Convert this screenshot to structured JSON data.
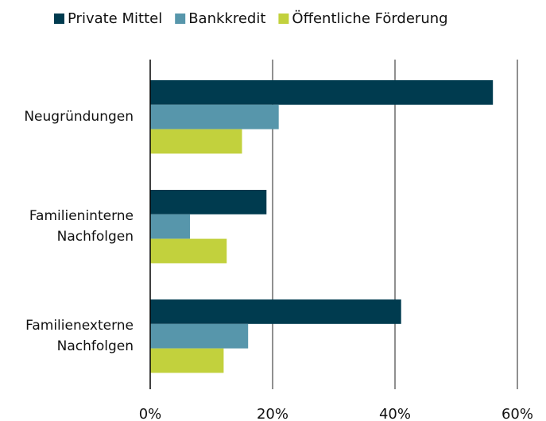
{
  "chart_data": {
    "type": "hbar",
    "categories": [
      "Neugründungen",
      "Familieninterne Nachfolgen",
      "Familienexterne Nachfolgen"
    ],
    "series": [
      {
        "name": "Private Mittel",
        "color": "#003b4f",
        "values": [
          56,
          19,
          41
        ]
      },
      {
        "name": "Bankkredit",
        "color": "#5796ab",
        "values": [
          21,
          6.5,
          16
        ]
      },
      {
        "name": "Öffentliche Förderung",
        "color": "#c2d13d",
        "values": [
          15,
          12.5,
          12
        ]
      }
    ],
    "xlim": [
      0,
      60
    ],
    "xticks": [
      {
        "value": 0,
        "label": "0%"
      },
      {
        "value": 20,
        "label": "20%"
      },
      {
        "value": 40,
        "label": "40%"
      },
      {
        "value": 60,
        "label": "60%"
      }
    ],
    "grid": true,
    "legend": "top"
  }
}
